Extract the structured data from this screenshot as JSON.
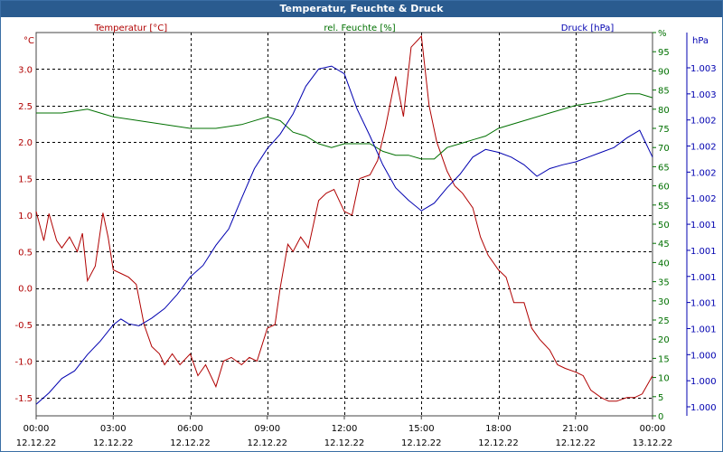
{
  "window": {
    "title": "Temperatur, Feuchte & Druck"
  },
  "colors": {
    "temperature": "#b00000",
    "humidity": "#007000",
    "pressure": "#0000b0",
    "grid": "#000000"
  },
  "axes": {
    "left": {
      "unit": "°C",
      "label": "Temperatur [°C]",
      "min": -1.75,
      "max": 3.5,
      "ticks": [
        "-1.5",
        "-1.0",
        "-0.5",
        "0.0",
        "0.5",
        "1.0",
        "1.5",
        "2.0",
        "2.5",
        "3.0"
      ]
    },
    "mid": {
      "label": "rel. Feuchte [%]",
      "min": 0,
      "max": 100,
      "ticks": [
        "0",
        "5",
        "10",
        "15",
        "20",
        "25",
        "30",
        "35",
        "40",
        "45",
        "50",
        "55",
        "60",
        "65",
        "70",
        "75",
        "80",
        "85",
        "90",
        "95",
        "%"
      ]
    },
    "right": {
      "unit": "hPa",
      "label": "Druck [hPa]",
      "ticks": [
        "1.000",
        "1.000",
        "1.000",
        "1.001",
        "1.001",
        "1.001",
        "1.001",
        "1.001",
        "1.002",
        "1.002",
        "1.002",
        "1.002",
        "1.003",
        "1.003"
      ]
    },
    "x": {
      "times": [
        "00:00",
        "03:00",
        "06:00",
        "09:00",
        "12:00",
        "15:00",
        "18:00",
        "21:00",
        "00:00"
      ],
      "dates": [
        "12.12.22",
        "12.12.22",
        "12.12.22",
        "12.12.22",
        "12.12.22",
        "12.12.22",
        "12.12.22",
        "12.12.22",
        "13.12.22"
      ]
    }
  },
  "chart_data": {
    "type": "line",
    "title": "Temperatur, Feuchte & Druck",
    "x_unit": "hours since 12.12.22 00:00",
    "x_range": [
      0,
      24
    ],
    "series": [
      {
        "name": "Temperatur [°C]",
        "axis": "left",
        "x": [
          0,
          0.3,
          0.5,
          0.8,
          1.0,
          1.3,
          1.6,
          1.8,
          2.0,
          2.3,
          2.6,
          2.8,
          3.0,
          3.3,
          3.6,
          3.9,
          4.2,
          4.5,
          4.8,
          5.0,
          5.3,
          5.6,
          6.0,
          6.3,
          6.6,
          7.0,
          7.3,
          7.6,
          8.0,
          8.3,
          8.6,
          9.0,
          9.3,
          9.5,
          9.8,
          10.0,
          10.3,
          10.6,
          11.0,
          11.3,
          11.6,
          12.0,
          12.3,
          12.6,
          13.0,
          13.3,
          13.6,
          14.0,
          14.3,
          14.6,
          15.0,
          15.3,
          15.6,
          16.0,
          16.3,
          16.6,
          17.0,
          17.3,
          17.6,
          18.0,
          18.3,
          18.6,
          19.0,
          19.3,
          19.6,
          20.0,
          20.3,
          20.6,
          21.0,
          21.3,
          21.6,
          22.0,
          22.3,
          22.6,
          23.0,
          23.3,
          23.6,
          24.0
        ],
        "y": [
          1.05,
          0.65,
          1.02,
          0.65,
          0.55,
          0.7,
          0.5,
          0.75,
          0.1,
          0.3,
          1.03,
          0.7,
          0.25,
          0.2,
          0.15,
          0.05,
          -0.5,
          -0.8,
          -0.9,
          -1.05,
          -0.9,
          -1.05,
          -0.9,
          -1.2,
          -1.05,
          -1.35,
          -1.0,
          -0.95,
          -1.05,
          -0.95,
          -1.0,
          -0.55,
          -0.5,
          0.0,
          0.6,
          0.5,
          0.7,
          0.55,
          1.2,
          1.3,
          1.35,
          1.05,
          1.0,
          1.5,
          1.55,
          1.75,
          2.2,
          2.9,
          2.35,
          3.3,
          3.45,
          2.5,
          2.0,
          1.6,
          1.4,
          1.3,
          1.1,
          0.7,
          0.45,
          0.25,
          0.15,
          -0.2,
          -0.2,
          -0.55,
          -0.7,
          -0.85,
          -1.05,
          -1.1,
          -1.15,
          -1.2,
          -1.4,
          -1.5,
          -1.55,
          -1.55,
          -1.5,
          -1.5,
          -1.45,
          -1.2
        ]
      },
      {
        "name": "rel. Feuchte [%]",
        "axis": "mid",
        "x": [
          0,
          1,
          2,
          2.5,
          3,
          4,
          5,
          6,
          7,
          8,
          9,
          9.5,
          10,
          10.5,
          11,
          11.5,
          12,
          13,
          13.5,
          14,
          14.5,
          15,
          15.5,
          16,
          16.5,
          17,
          17.5,
          18,
          19,
          20,
          21,
          22,
          22.5,
          23,
          23.5,
          24
        ],
        "y": [
          79,
          79,
          80,
          79,
          78,
          77,
          76,
          75,
          75,
          76,
          78,
          77,
          74,
          73,
          71,
          70,
          71,
          71,
          69,
          68,
          68,
          67,
          67,
          70,
          71,
          72,
          73,
          75,
          77,
          79,
          81,
          82,
          83,
          84,
          84,
          83
        ]
      },
      {
        "name": "Druck [hPa]",
        "axis": "right",
        "ylim": [
          999.5,
          1003.5
        ],
        "x": [
          0,
          0.5,
          1,
          1.5,
          2,
          2.5,
          3,
          3.3,
          3.6,
          4,
          4.5,
          5,
          5.5,
          6,
          6.5,
          7,
          7.5,
          8,
          8.5,
          9,
          9.5,
          10,
          10.5,
          11,
          11.5,
          12,
          12.5,
          13,
          13.5,
          14,
          14.5,
          15,
          15.5,
          16,
          16.5,
          17,
          17.5,
          18,
          18.5,
          19,
          19.5,
          20,
          20.5,
          21,
          21.5,
          22,
          22.5,
          23,
          23.5,
          24
        ],
        "y": [
          999.62,
          999.74,
          999.89,
          999.97,
          1000.14,
          1000.28,
          1000.45,
          1000.51,
          1000.46,
          1000.44,
          1000.52,
          1000.62,
          1000.77,
          1000.95,
          1001.07,
          1001.28,
          1001.45,
          1001.77,
          1002.08,
          1002.29,
          1002.44,
          1002.65,
          1002.94,
          1003.12,
          1003.15,
          1003.07,
          1002.7,
          1002.42,
          1002.12,
          1001.88,
          1001.75,
          1001.64,
          1001.72,
          1001.88,
          1002.02,
          1002.2,
          1002.28,
          1002.25,
          1002.2,
          1002.12,
          1002.0,
          1002.08,
          1002.12,
          1002.15,
          1002.2,
          1002.25,
          1002.3,
          1002.4,
          1002.48,
          1002.2
        ]
      }
    ]
  }
}
